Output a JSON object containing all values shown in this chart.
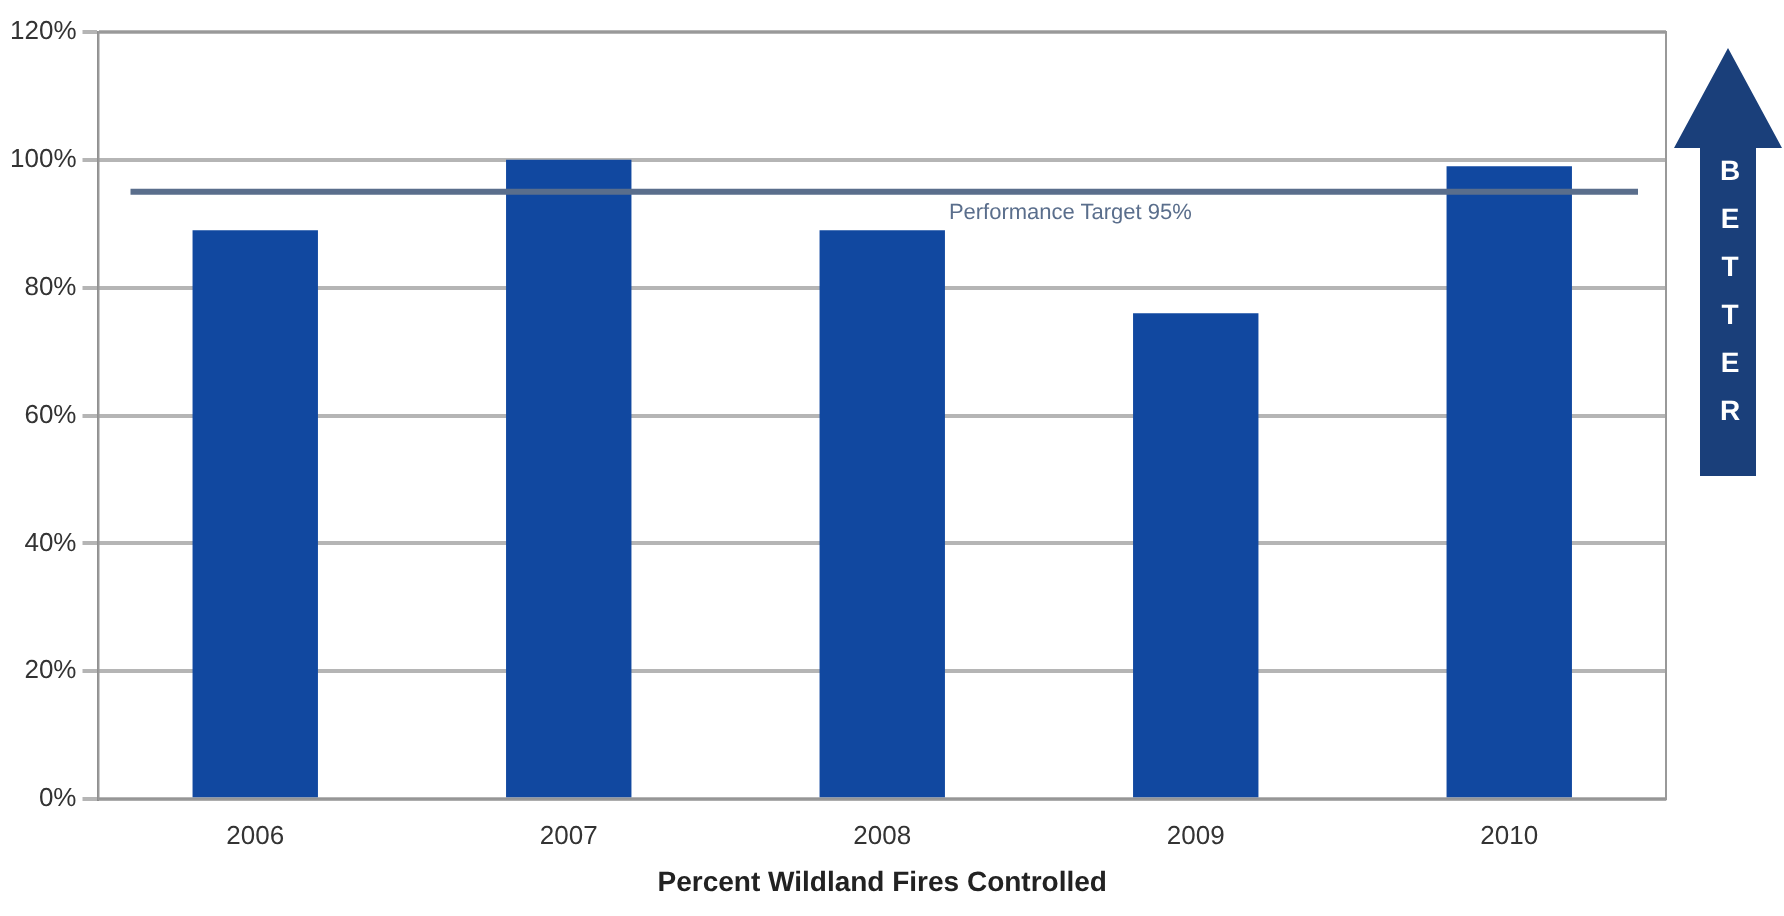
{
  "chart_data": {
    "type": "bar",
    "xlabel": "Percent Wildland Fires Controlled",
    "categories": [
      "2006",
      "2007",
      "2008",
      "2009",
      "2010"
    ],
    "values": [
      89,
      100,
      89,
      76,
      99
    ],
    "color": "#1148a0",
    "ylim": [
      0,
      120
    ],
    "yticks": [
      {
        "value": 0,
        "label": "0%"
      },
      {
        "value": 20,
        "label": "20%"
      },
      {
        "value": 40,
        "label": "40%"
      },
      {
        "value": 60,
        "label": "60%"
      },
      {
        "value": 80,
        "label": "80%"
      },
      {
        "value": 100,
        "label": "100%"
      },
      {
        "value": 120,
        "label": "120%"
      }
    ],
    "grid": "y",
    "legend": false,
    "ref_lines": [
      {
        "axis": "y",
        "value": 95,
        "label": "Performance Target 95%",
        "color": "#5a6e8c"
      }
    ],
    "annotations": [
      "BETTER"
    ]
  }
}
